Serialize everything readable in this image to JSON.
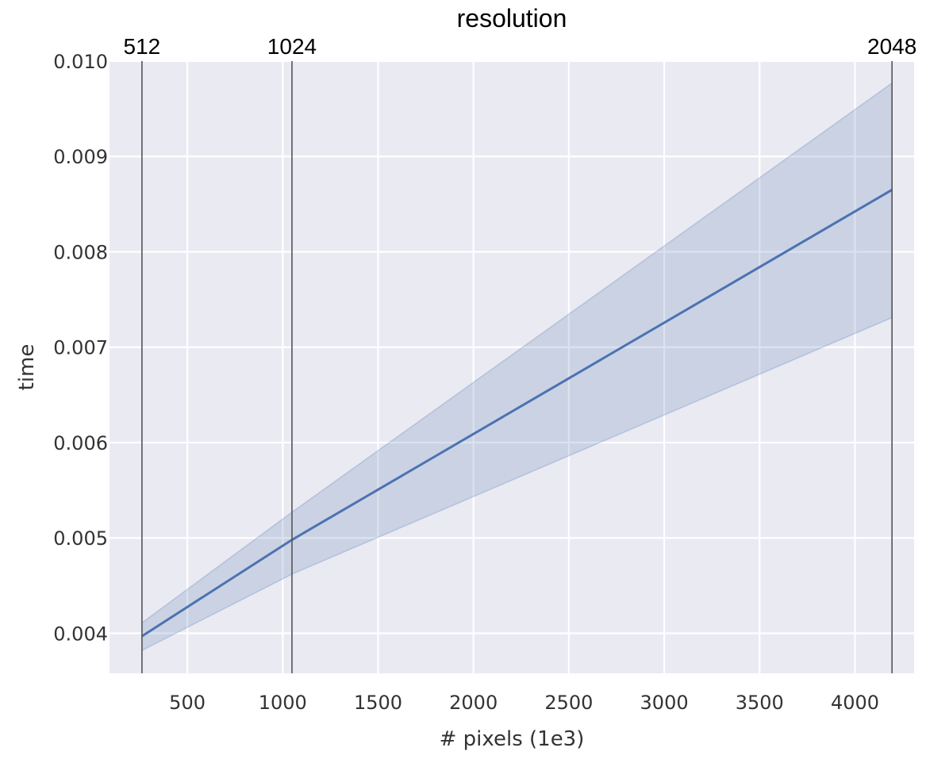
{
  "chart_data": {
    "type": "line",
    "title": "",
    "xlabel": "# pixels (1e3)",
    "ylabel": "time",
    "xlim": [
      92,
      4310
    ],
    "ylim": [
      0.00358,
      0.01
    ],
    "x_ticks": [
      500,
      1000,
      1500,
      2000,
      2500,
      3000,
      3500,
      4000
    ],
    "x_tick_labels": [
      "500",
      "1000",
      "1500",
      "2000",
      "2500",
      "3000",
      "3500",
      "4000"
    ],
    "y_ticks": [
      0.004,
      0.005,
      0.006,
      0.007,
      0.008,
      0.009,
      0.01
    ],
    "y_tick_labels": [
      "0.004",
      "0.005",
      "0.006",
      "0.007",
      "0.008",
      "0.009",
      "0.010"
    ],
    "grid": true,
    "background_color": "#eaeaf2",
    "grid_color": "#ffffff",
    "line_color": "#4c72b0",
    "band_color": "#4c72b0",
    "vline_color": "#555555",
    "secondary_x_axis": {
      "title": "resolution",
      "ticks": [
        262.144,
        1048.576,
        4194.304
      ],
      "tick_labels": [
        "512",
        "1024",
        "2048"
      ]
    },
    "series": [
      {
        "x": [
          262.144,
          1048.576,
          4194.304
        ],
        "values": [
          0.00397,
          0.00498,
          0.00865
        ],
        "lower": [
          0.00382,
          0.00462,
          0.00731
        ],
        "upper": [
          0.00411,
          0.00527,
          0.00977
        ]
      }
    ]
  }
}
